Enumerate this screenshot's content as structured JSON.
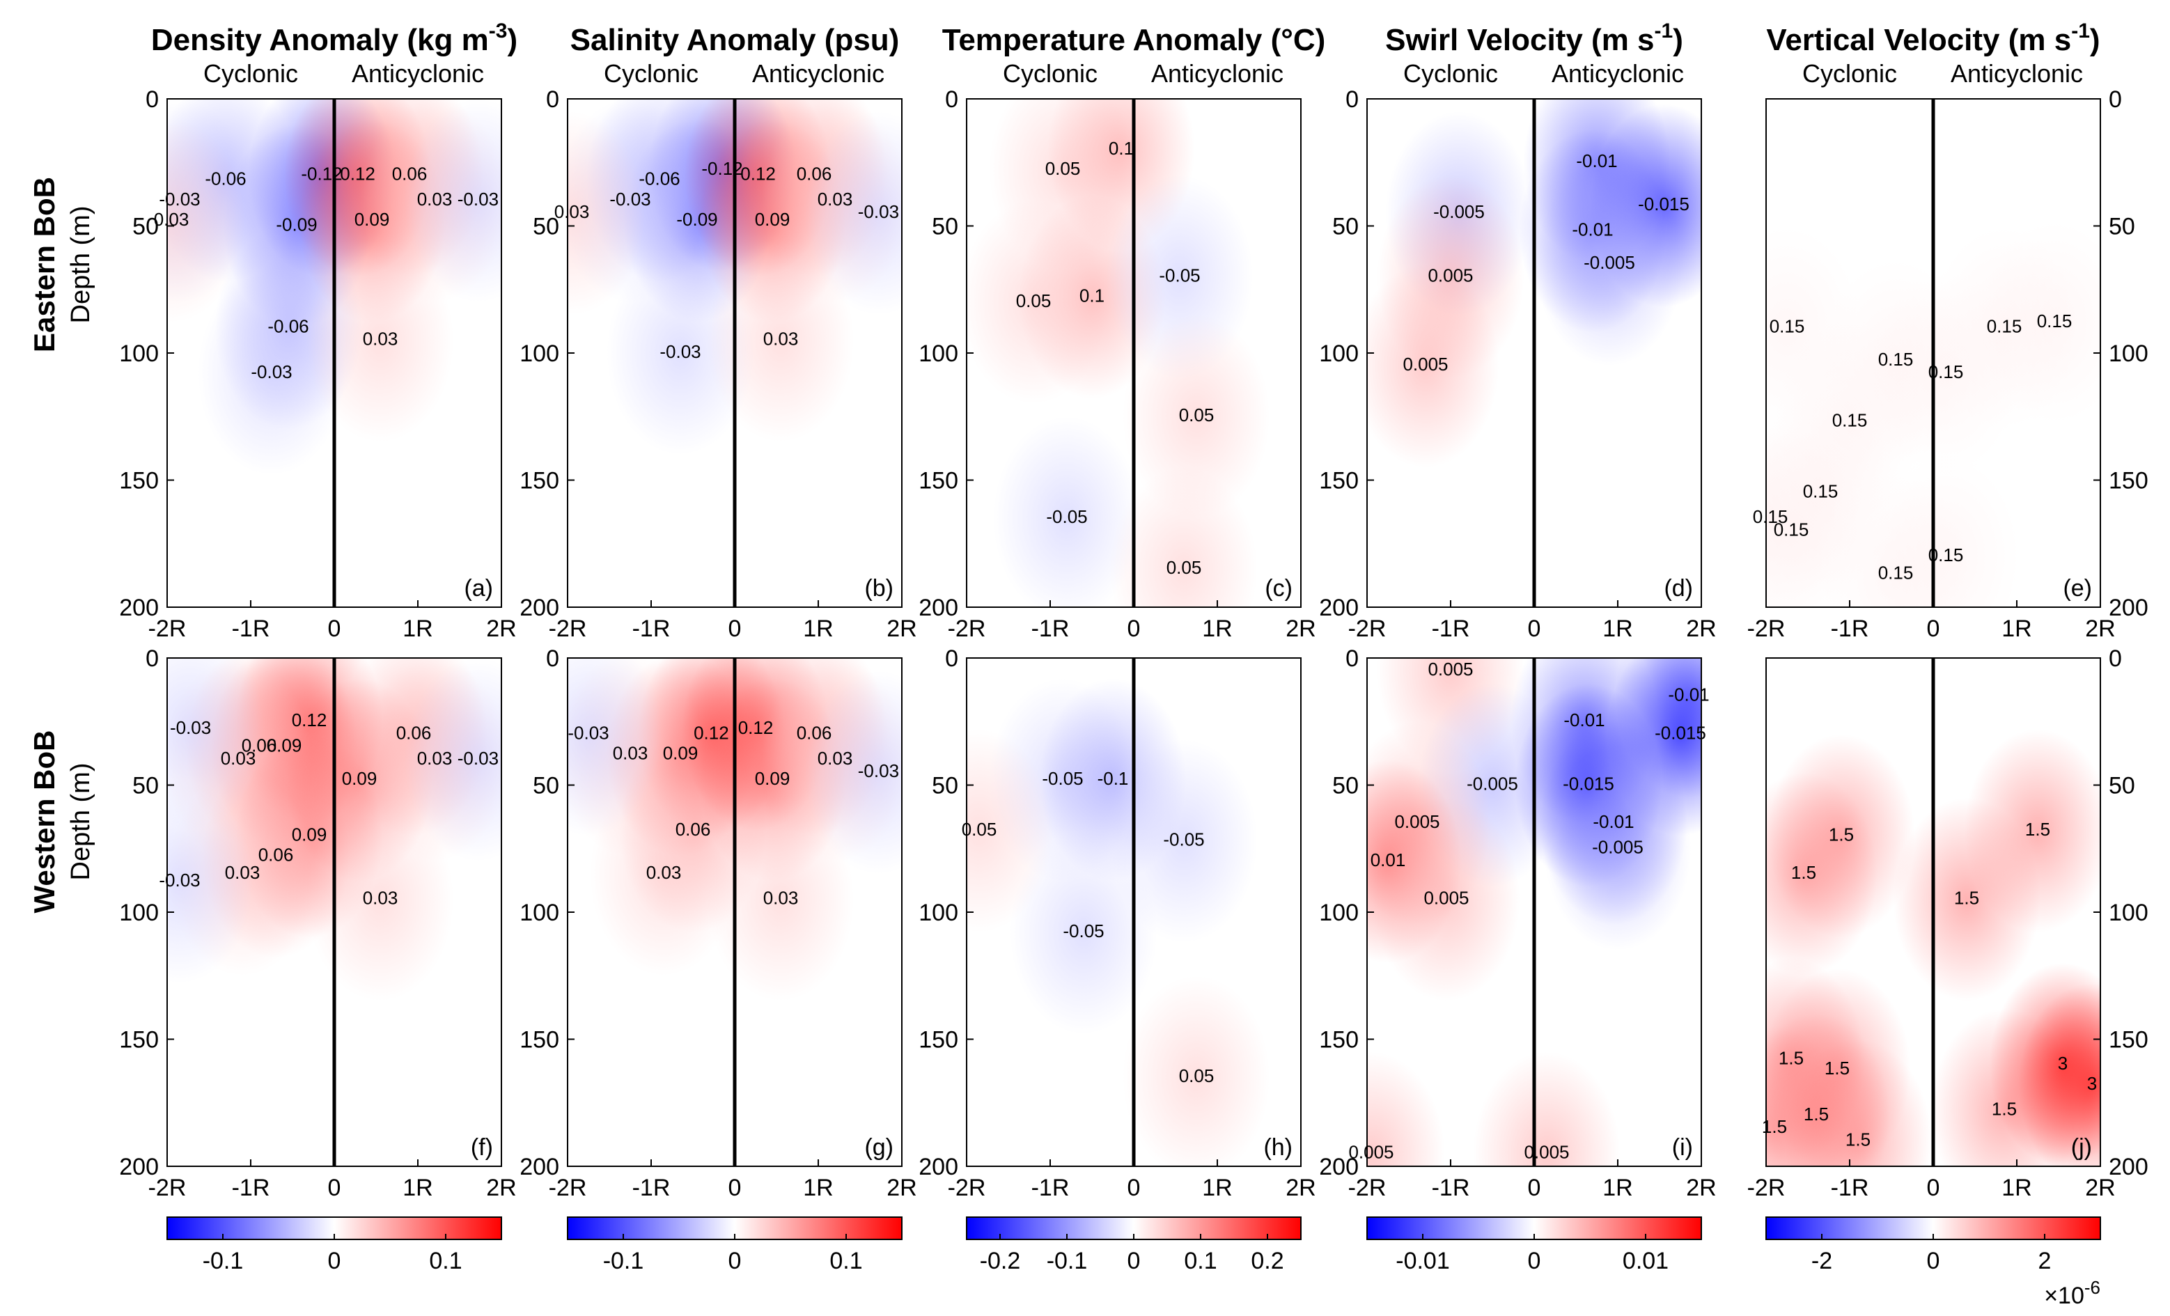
{
  "figure": {
    "rows": [
      {
        "label": "Eastern BoB",
        "ylabel": "Depth (m)"
      },
      {
        "label": "Western BoB",
        "ylabel": "Depth (m)"
      }
    ],
    "side_labels": {
      "left": "Cyclonic",
      "right": "Anticyclonic"
    },
    "colors": {
      "neg": "#0000ff",
      "mid": "#ffffff",
      "pos": "#ff0000",
      "contour": "#000000"
    }
  },
  "chart_data": [
    {
      "type": "heatmap",
      "title": "Density Anomaly (kg m",
      "title_sup": "-3",
      "title_end": ")",
      "x_ticks": [
        "-2R",
        "-1R",
        "0",
        "1R",
        "2R"
      ],
      "y_ticks": [
        "0",
        "50",
        "100",
        "150",
        "200"
      ],
      "ylim": [
        0,
        200
      ],
      "colorbar": {
        "ticks": [
          "-0.1",
          "0",
          "0.1"
        ],
        "range": [
          -0.15,
          0.15
        ],
        "multiplier": ""
      },
      "panels": [
        {
          "label": "(a)",
          "contours": [
            {
              "t": "-0.12",
              "x": -0.15,
              "y": 30,
              "s": -0.12
            },
            {
              "t": "-0.09",
              "x": -0.45,
              "y": 50,
              "s": -0.09
            },
            {
              "t": "-0.06",
              "x": -1.3,
              "y": 32,
              "s": -0.06
            },
            {
              "t": "-0.06",
              "x": -0.55,
              "y": 90,
              "s": -0.06
            },
            {
              "t": "-0.03",
              "x": -1.85,
              "y": 40,
              "s": -0.03
            },
            {
              "t": "-0.03",
              "x": -0.75,
              "y": 108,
              "s": -0.03
            },
            {
              "t": "0.03",
              "x": -1.95,
              "y": 48,
              "s": 0.03
            },
            {
              "t": "0.12",
              "x": 0.28,
              "y": 30,
              "s": 0.12
            },
            {
              "t": "0.09",
              "x": 0.45,
              "y": 48,
              "s": 0.09
            },
            {
              "t": "0.06",
              "x": 0.9,
              "y": 30,
              "s": 0.06
            },
            {
              "t": "0.03",
              "x": 1.2,
              "y": 40,
              "s": 0.03
            },
            {
              "t": "0.03",
              "x": 0.55,
              "y": 95,
              "s": 0.03
            },
            {
              "t": "-0.03",
              "x": 1.72,
              "y": 40,
              "s": -0.03
            }
          ]
        },
        {
          "label": "(f)",
          "contours": [
            {
              "t": "0.12",
              "x": -0.3,
              "y": 25,
              "s": 0.12
            },
            {
              "t": "0.09",
              "x": -0.6,
              "y": 35,
              "s": 0.09
            },
            {
              "t": "0.06",
              "x": -0.9,
              "y": 35,
              "s": 0.06
            },
            {
              "t": "0.03",
              "x": -1.15,
              "y": 40,
              "s": 0.03
            },
            {
              "t": "0.09",
              "x": -0.3,
              "y": 70,
              "s": 0.09
            },
            {
              "t": "0.06",
              "x": -0.7,
              "y": 78,
              "s": 0.06
            },
            {
              "t": "0.03",
              "x": -1.1,
              "y": 85,
              "s": 0.03
            },
            {
              "t": "-0.03",
              "x": -1.72,
              "y": 28,
              "s": -0.03
            },
            {
              "t": "-0.03",
              "x": -1.85,
              "y": 88,
              "s": -0.03
            },
            {
              "t": "0.09",
              "x": 0.3,
              "y": 48,
              "s": 0.09
            },
            {
              "t": "0.06",
              "x": 0.95,
              "y": 30,
              "s": 0.06
            },
            {
              "t": "0.03",
              "x": 1.2,
              "y": 40,
              "s": 0.03
            },
            {
              "t": "0.03",
              "x": 0.55,
              "y": 95,
              "s": 0.03
            },
            {
              "t": "-0.03",
              "x": 1.72,
              "y": 40,
              "s": -0.03
            }
          ]
        }
      ]
    },
    {
      "type": "heatmap",
      "title": "Salinity Anomaly (psu)",
      "title_sup": "",
      "title_end": "",
      "x_ticks": [
        "-2R",
        "-1R",
        "0",
        "1R",
        "2R"
      ],
      "y_ticks": [
        "0",
        "50",
        "100",
        "150",
        "200"
      ],
      "ylim": [
        0,
        200
      ],
      "colorbar": {
        "ticks": [
          "-0.1",
          "0",
          "0.1"
        ],
        "range": [
          -0.15,
          0.15
        ],
        "multiplier": ""
      },
      "panels": [
        {
          "label": "(b)",
          "contours": [
            {
              "t": "-0.12",
              "x": -0.15,
              "y": 28,
              "s": -0.12
            },
            {
              "t": "-0.09",
              "x": -0.45,
              "y": 48,
              "s": -0.09
            },
            {
              "t": "-0.06",
              "x": -0.9,
              "y": 32,
              "s": -0.06
            },
            {
              "t": "-0.03",
              "x": -1.25,
              "y": 40,
              "s": -0.03
            },
            {
              "t": "-0.03",
              "x": -0.65,
              "y": 100,
              "s": -0.03
            },
            {
              "t": "0.03",
              "x": -1.95,
              "y": 45,
              "s": 0.03
            },
            {
              "t": "0.12",
              "x": 0.28,
              "y": 30,
              "s": 0.12
            },
            {
              "t": "0.09",
              "x": 0.45,
              "y": 48,
              "s": 0.09
            },
            {
              "t": "0.06",
              "x": 0.95,
              "y": 30,
              "s": 0.06
            },
            {
              "t": "0.03",
              "x": 1.2,
              "y": 40,
              "s": 0.03
            },
            {
              "t": "0.03",
              "x": 0.55,
              "y": 95,
              "s": 0.03
            },
            {
              "t": "-0.03",
              "x": 1.72,
              "y": 45,
              "s": -0.03
            }
          ]
        },
        {
          "label": "(g)",
          "contours": [
            {
              "t": "0.12",
              "x": -0.28,
              "y": 30,
              "s": 0.12
            },
            {
              "t": "0.09",
              "x": -0.65,
              "y": 38,
              "s": 0.09
            },
            {
              "t": "0.03",
              "x": -1.25,
              "y": 38,
              "s": 0.03
            },
            {
              "t": "0.06",
              "x": -0.5,
              "y": 68,
              "s": 0.06
            },
            {
              "t": "0.03",
              "x": -0.85,
              "y": 85,
              "s": 0.03
            },
            {
              "t": "-0.03",
              "x": -1.75,
              "y": 30,
              "s": -0.03
            },
            {
              "t": "0.12",
              "x": 0.25,
              "y": 28,
              "s": 0.12
            },
            {
              "t": "0.09",
              "x": 0.45,
              "y": 48,
              "s": 0.09
            },
            {
              "t": "0.06",
              "x": 0.95,
              "y": 30,
              "s": 0.06
            },
            {
              "t": "0.03",
              "x": 1.2,
              "y": 40,
              "s": 0.03
            },
            {
              "t": "0.03",
              "x": 0.55,
              "y": 95,
              "s": 0.03
            },
            {
              "t": "-0.03",
              "x": 1.72,
              "y": 45,
              "s": -0.03
            }
          ]
        }
      ]
    },
    {
      "type": "heatmap",
      "title": "Temperature Anomaly (°C)",
      "title_sup": "",
      "title_end": "",
      "x_ticks": [
        "-2R",
        "-1R",
        "0",
        "1R",
        "2R"
      ],
      "y_ticks": [
        "0",
        "50",
        "100",
        "150",
        "200"
      ],
      "ylim": [
        0,
        200
      ],
      "colorbar": {
        "ticks": [
          "-0.2",
          "-0.1",
          "0",
          "0.1",
          "0.2"
        ],
        "range": [
          -0.25,
          0.25
        ],
        "multiplier": ""
      },
      "panels": [
        {
          "label": "(c)",
          "contours": [
            {
              "t": "0.05",
              "x": -0.85,
              "y": 28,
              "s": 0.05
            },
            {
              "t": "0.1",
              "x": -0.15,
              "y": 20,
              "s": 0.1
            },
            {
              "t": "0.1",
              "x": -0.5,
              "y": 78,
              "s": 0.1
            },
            {
              "t": "0.05",
              "x": -1.2,
              "y": 80,
              "s": 0.05
            },
            {
              "t": "-0.05",
              "x": 0.55,
              "y": 70,
              "s": -0.05
            },
            {
              "t": "0.05",
              "x": 0.75,
              "y": 125,
              "s": 0.05
            },
            {
              "t": "-0.05",
              "x": -0.8,
              "y": 165,
              "s": -0.05
            },
            {
              "t": "0.05",
              "x": 0.6,
              "y": 185,
              "s": 0.05
            }
          ]
        },
        {
          "label": "(h)",
          "contours": [
            {
              "t": "-0.05",
              "x": -0.85,
              "y": 48,
              "s": -0.05
            },
            {
              "t": "-0.1",
              "x": -0.25,
              "y": 48,
              "s": -0.1
            },
            {
              "t": "-0.05",
              "x": 0.6,
              "y": 72,
              "s": -0.05
            },
            {
              "t": "0.05",
              "x": -1.85,
              "y": 68,
              "s": 0.05
            },
            {
              "t": "-0.05",
              "x": -0.6,
              "y": 108,
              "s": -0.05
            },
            {
              "t": "0.05",
              "x": 0.75,
              "y": 165,
              "s": 0.05
            }
          ]
        }
      ]
    },
    {
      "type": "heatmap",
      "title": "Swirl Velocity (m s",
      "title_sup": "-1",
      "title_end": ")",
      "x_ticks": [
        "-2R",
        "-1R",
        "0",
        "1R",
        "2R"
      ],
      "y_ticks": [
        "0",
        "50",
        "100",
        "150",
        "200"
      ],
      "ylim": [
        0,
        200
      ],
      "colorbar": {
        "ticks": [
          "-0.01",
          "0",
          "0.01"
        ],
        "range": [
          -0.015,
          0.015
        ],
        "multiplier": ""
      },
      "panels": [
        {
          "label": "(d)",
          "contours": [
            {
              "t": "-0.01",
              "x": 0.75,
              "y": 25,
              "s": -0.01
            },
            {
              "t": "-0.015",
              "x": 1.55,
              "y": 42,
              "s": -0.015
            },
            {
              "t": "-0.005",
              "x": -0.9,
              "y": 45,
              "s": -0.005
            },
            {
              "t": "-0.01",
              "x": 0.7,
              "y": 52,
              "s": -0.01
            },
            {
              "t": "-0.005",
              "x": 0.9,
              "y": 65,
              "s": -0.005
            },
            {
              "t": "0.005",
              "x": -1.0,
              "y": 70,
              "s": 0.005
            },
            {
              "t": "0.005",
              "x": -1.3,
              "y": 105,
              "s": 0.005
            }
          ]
        },
        {
          "label": "(i)",
          "contours": [
            {
              "t": "0.005",
              "x": -1.0,
              "y": 5,
              "s": 0.005
            },
            {
              "t": "-0.01",
              "x": 0.6,
              "y": 25,
              "s": -0.01
            },
            {
              "t": "-0.01",
              "x": 1.85,
              "y": 15,
              "s": -0.01
            },
            {
              "t": "-0.015",
              "x": 1.75,
              "y": 30,
              "s": -0.015
            },
            {
              "t": "-0.005",
              "x": -0.5,
              "y": 50,
              "s": -0.005
            },
            {
              "t": "-0.015",
              "x": 0.65,
              "y": 50,
              "s": -0.015
            },
            {
              "t": "-0.01",
              "x": 0.95,
              "y": 65,
              "s": -0.01
            },
            {
              "t": "-0.005",
              "x": 1.0,
              "y": 75,
              "s": -0.005
            },
            {
              "t": "0.005",
              "x": -1.4,
              "y": 65,
              "s": 0.005
            },
            {
              "t": "0.01",
              "x": -1.75,
              "y": 80,
              "s": 0.01
            },
            {
              "t": "0.005",
              "x": -1.05,
              "y": 95,
              "s": 0.005
            },
            {
              "t": "0.005",
              "x": -1.95,
              "y": 195,
              "s": 0.005
            },
            {
              "t": "0.005",
              "x": 0.15,
              "y": 195,
              "s": 0.005
            }
          ]
        }
      ]
    },
    {
      "type": "heatmap",
      "title": "Vertical Velocity (m s",
      "title_sup": "-1",
      "title_end": ")",
      "x_ticks": [
        "-2R",
        "-1R",
        "0",
        "1R",
        "2R"
      ],
      "y_ticks": [
        "0",
        "50",
        "100",
        "150",
        "200"
      ],
      "ylim": [
        0,
        200
      ],
      "colorbar": {
        "ticks": [
          "-2",
          "0",
          "2"
        ],
        "range": [
          -3,
          3
        ],
        "multiplier": "×10",
        "multiplier_exp": "-6"
      },
      "panels": [
        {
          "label": "(e)",
          "contours": [
            {
              "t": "0.15",
              "x": -1.75,
              "y": 90,
              "s": 0.15
            },
            {
              "t": "0.15",
              "x": 0.85,
              "y": 90,
              "s": 0.15
            },
            {
              "t": "0.15",
              "x": 1.45,
              "y": 88,
              "s": 0.15
            },
            {
              "t": "0.15",
              "x": -0.45,
              "y": 103,
              "s": 0.15
            },
            {
              "t": "0.15",
              "x": 0.15,
              "y": 108,
              "s": 0.15
            },
            {
              "t": "0.15",
              "x": -1.0,
              "y": 127,
              "s": 0.15
            },
            {
              "t": "0.15",
              "x": -1.35,
              "y": 155,
              "s": 0.15
            },
            {
              "t": "0.15",
              "x": -1.95,
              "y": 165,
              "s": 0.15
            },
            {
              "t": "0.15",
              "x": -1.7,
              "y": 170,
              "s": 0.15
            },
            {
              "t": "0.15",
              "x": 0.15,
              "y": 180,
              "s": 0.15
            },
            {
              "t": "0.15",
              "x": -0.45,
              "y": 187,
              "s": 0.15
            }
          ]
        },
        {
          "label": "(j)",
          "contours": [
            {
              "t": "1.5",
              "x": -1.1,
              "y": 70,
              "s": 1.5
            },
            {
              "t": "1.5",
              "x": -1.55,
              "y": 85,
              "s": 1.5
            },
            {
              "t": "1.5",
              "x": 0.4,
              "y": 95,
              "s": 1.5
            },
            {
              "t": "1.5",
              "x": 1.25,
              "y": 68,
              "s": 1.5
            },
            {
              "t": "1.5",
              "x": -1.7,
              "y": 158,
              "s": 1.5
            },
            {
              "t": "1.5",
              "x": -1.15,
              "y": 162,
              "s": 1.5
            },
            {
              "t": "1.5",
              "x": -1.9,
              "y": 185,
              "s": 1.5
            },
            {
              "t": "1.5",
              "x": -1.4,
              "y": 180,
              "s": 1.5
            },
            {
              "t": "1.5",
              "x": -0.9,
              "y": 190,
              "s": 1.5
            },
            {
              "t": "1.5",
              "x": 0.85,
              "y": 178,
              "s": 1.5
            },
            {
              "t": "3",
              "x": 1.55,
              "y": 160,
              "s": 3
            },
            {
              "t": "3",
              "x": 1.9,
              "y": 168,
              "s": 3
            }
          ]
        }
      ]
    }
  ]
}
